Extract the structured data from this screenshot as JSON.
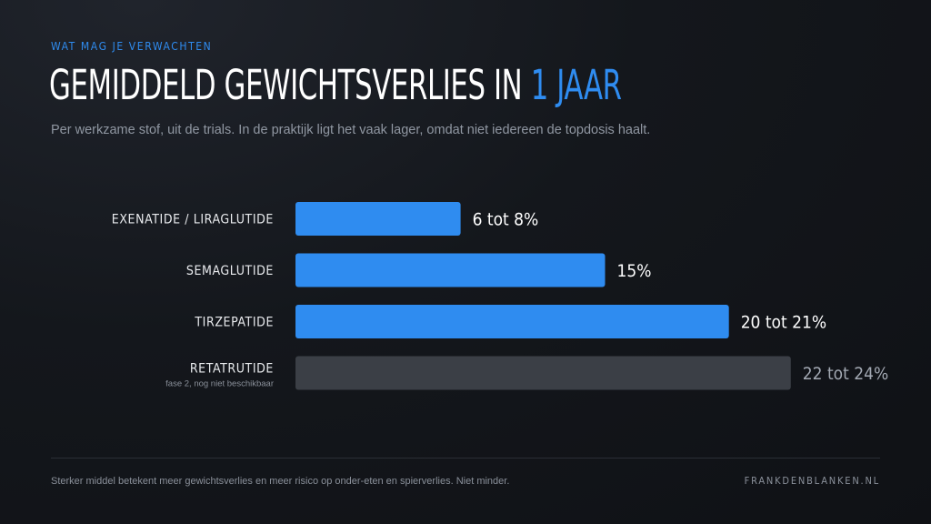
{
  "header": {
    "kicker": "WAT MAG JE VERWACHTEN",
    "title_main": "GEMIDDELD GEWICHTSVERLIES IN ",
    "title_accent": "1 JAAR",
    "subtitle": "Per werkzame stof, uit de trials. In de praktijk ligt het vaak lager, omdat niet iedereen de topdosis haalt."
  },
  "colors": {
    "accent": "#2f8cf0",
    "muted_bar": "#3b3f46",
    "background": "#14171c"
  },
  "chart_data": {
    "type": "bar",
    "orientation": "horizontal",
    "xlim": [
      0,
      25
    ],
    "grid": false,
    "categories": [
      "EXENATIDE / LIRAGLUTIDE",
      "SEMAGLUTIDE",
      "TIRZEPATIDE",
      "RETATRUTIDE"
    ],
    "category_notes": [
      "",
      "",
      "",
      "fase 2, nog niet beschikbaar"
    ],
    "values": [
      8,
      15,
      21,
      24
    ],
    "ranges": [
      [
        6,
        8
      ],
      [
        15,
        15
      ],
      [
        20,
        21
      ],
      [
        22,
        24
      ]
    ],
    "value_labels": [
      "6 tot 8%",
      "15%",
      "20 tot 21%",
      "22 tot 24%"
    ],
    "muted": [
      false,
      false,
      false,
      true
    ]
  },
  "footer": {
    "note": "Sterker middel betekent meer gewichtsverlies en meer risico op onder-eten en spierverlies. Niet minder.",
    "brand": "FRANKDENBLANKEN.NL"
  }
}
